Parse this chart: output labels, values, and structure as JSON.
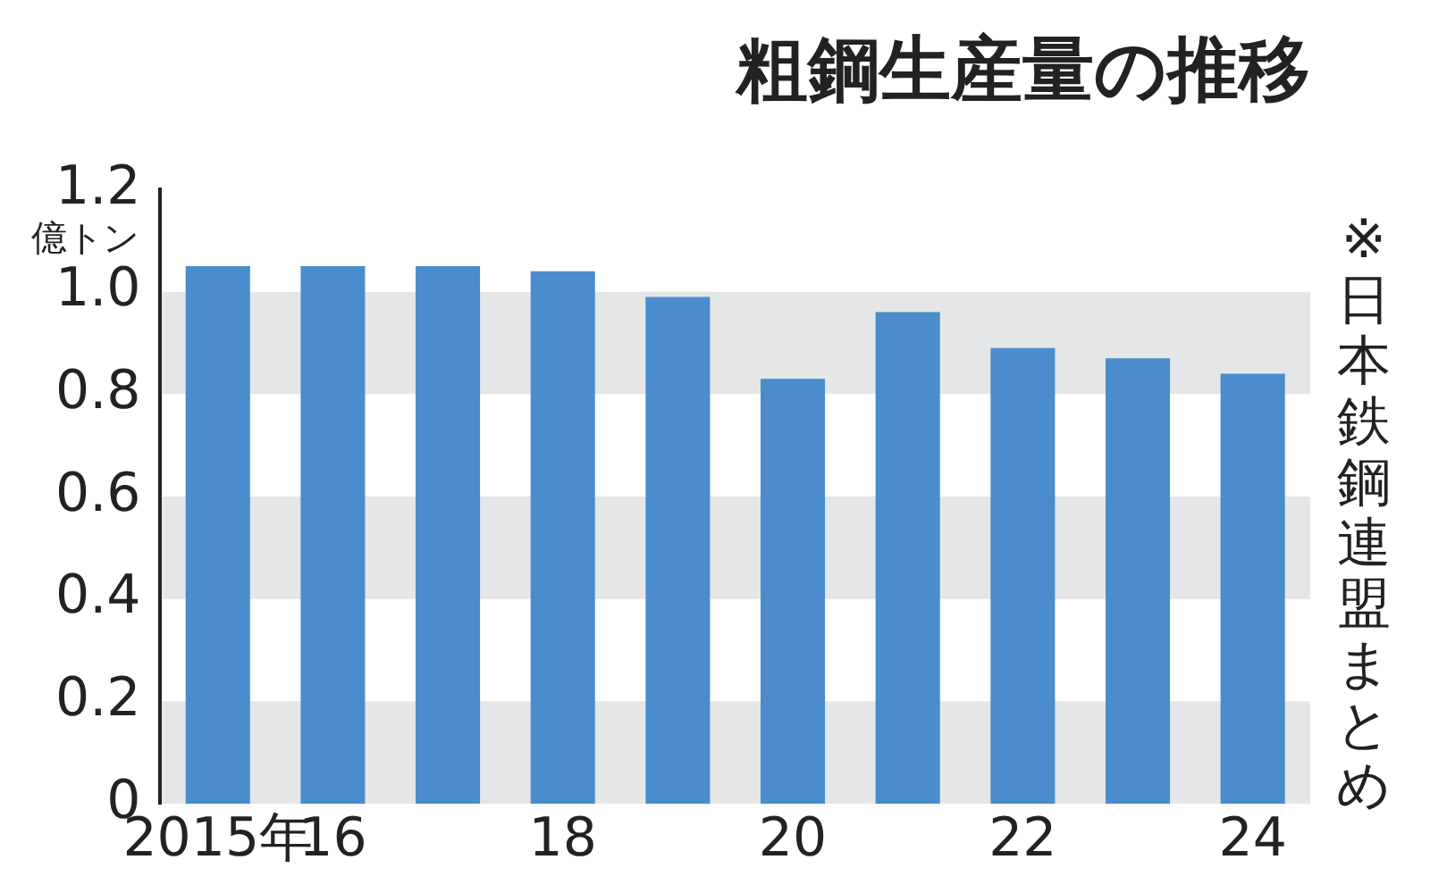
{
  "chart_data": {
    "type": "bar",
    "title": "粗鋼生産量の推移",
    "ylabel": "億トン",
    "annotations": [
      "※日本鉄鋼連盟まとめ"
    ],
    "categories": [
      "2015年",
      "16",
      null,
      "18",
      null,
      "20",
      null,
      "22",
      null,
      "24"
    ],
    "values": [
      1.05,
      1.05,
      1.05,
      1.04,
      0.99,
      0.83,
      0.96,
      0.89,
      0.87,
      0.84
    ],
    "color": "#4a8ccc",
    "ylim": [
      0,
      1.2
    ],
    "yticks": [
      0,
      0.2,
      0.4,
      0.6,
      0.8,
      {
        "value": 1,
        "label": "1.0"
      },
      1.2
    ],
    "bands": [
      {
        "axis": "y",
        "from": 0,
        "to": 0.2,
        "color": "#e5e6e8"
      },
      {
        "axis": "y",
        "from": 0.4,
        "to": 0.6,
        "color": "#e5e6e8"
      },
      {
        "axis": "y",
        "from": 0.8,
        "to": 1.0,
        "color": "#e5e6e8"
      }
    ],
    "grid": false,
    "legend": false
  }
}
